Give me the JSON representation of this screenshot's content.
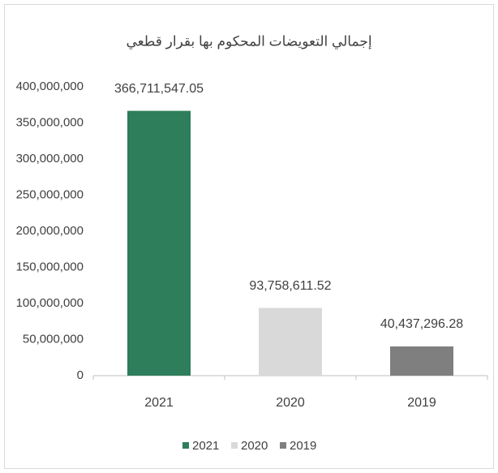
{
  "chart_data": {
    "type": "bar",
    "title": "إجمالي التعويضات المحكوم بها بقرار قطعي",
    "categories": [
      "2021",
      "2020",
      "2019"
    ],
    "values": [
      366711547.05,
      93758611.52,
      40437296.28
    ],
    "value_labels": [
      "366,711,547.05",
      "93,758,611.52",
      "40,437,296.28"
    ],
    "colors": [
      "#2e7d5b",
      "#d9d9d9",
      "#7f7f7f"
    ],
    "ylim": [
      0,
      400000000
    ],
    "yticks": [
      0,
      {
        "value": 50000000,
        "label": "50,000,000"
      },
      {
        "value": 100000000,
        "label": "100,000,000"
      },
      {
        "value": 150000000,
        "label": "150,000,000"
      },
      {
        "value": 200000000,
        "label": "200,000,000"
      },
      {
        "value": 250000000,
        "label": "250,000,000"
      },
      {
        "value": 300000000,
        "label": "300,000,000"
      },
      {
        "value": 350000000,
        "label": "350,000,000"
      },
      {
        "value": 400000000,
        "label": "400,000,000"
      }
    ],
    "grid": false,
    "legend": "bottom"
  }
}
